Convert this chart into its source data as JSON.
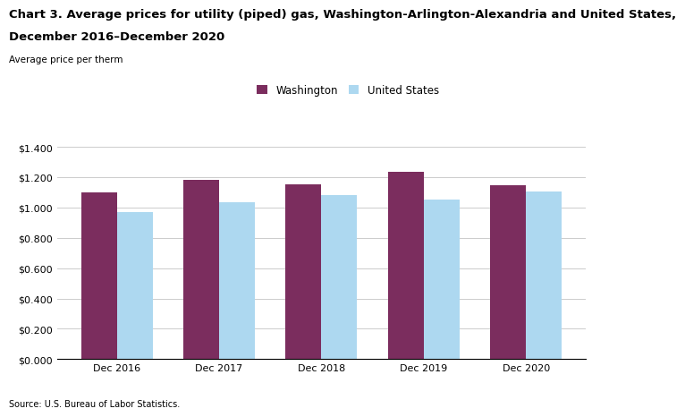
{
  "title_line1": "Chart 3. Average prices for utility (piped) gas, Washington-Arlington-Alexandria and United States,",
  "title_line2": "December 2016–December 2020",
  "ylabel": "Average price per therm",
  "categories": [
    "Dec 2016",
    "Dec 2017",
    "Dec 2018",
    "Dec 2019",
    "Dec 2020"
  ],
  "washington_values": [
    1.1,
    1.185,
    1.155,
    1.235,
    1.145
  ],
  "us_values": [
    0.97,
    1.035,
    1.08,
    1.055,
    1.105
  ],
  "washington_color": "#7B2D5E",
  "us_color": "#ADD8F0",
  "washington_label": "Washington",
  "us_label": "United States",
  "ylim": [
    0.0,
    1.4
  ],
  "yticks": [
    0.0,
    0.2,
    0.4,
    0.6,
    0.8,
    1.0,
    1.2,
    1.4
  ],
  "source": "Source: U.S. Bureau of Labor Statistics.",
  "bar_width": 0.35,
  "background_color": "#ffffff",
  "plot_background_color": "#ffffff",
  "grid_color": "#cccccc",
  "title_fontsize": 9.5,
  "ylabel_fontsize": 7.5,
  "tick_fontsize": 8,
  "legend_fontsize": 8.5,
  "source_fontsize": 7
}
